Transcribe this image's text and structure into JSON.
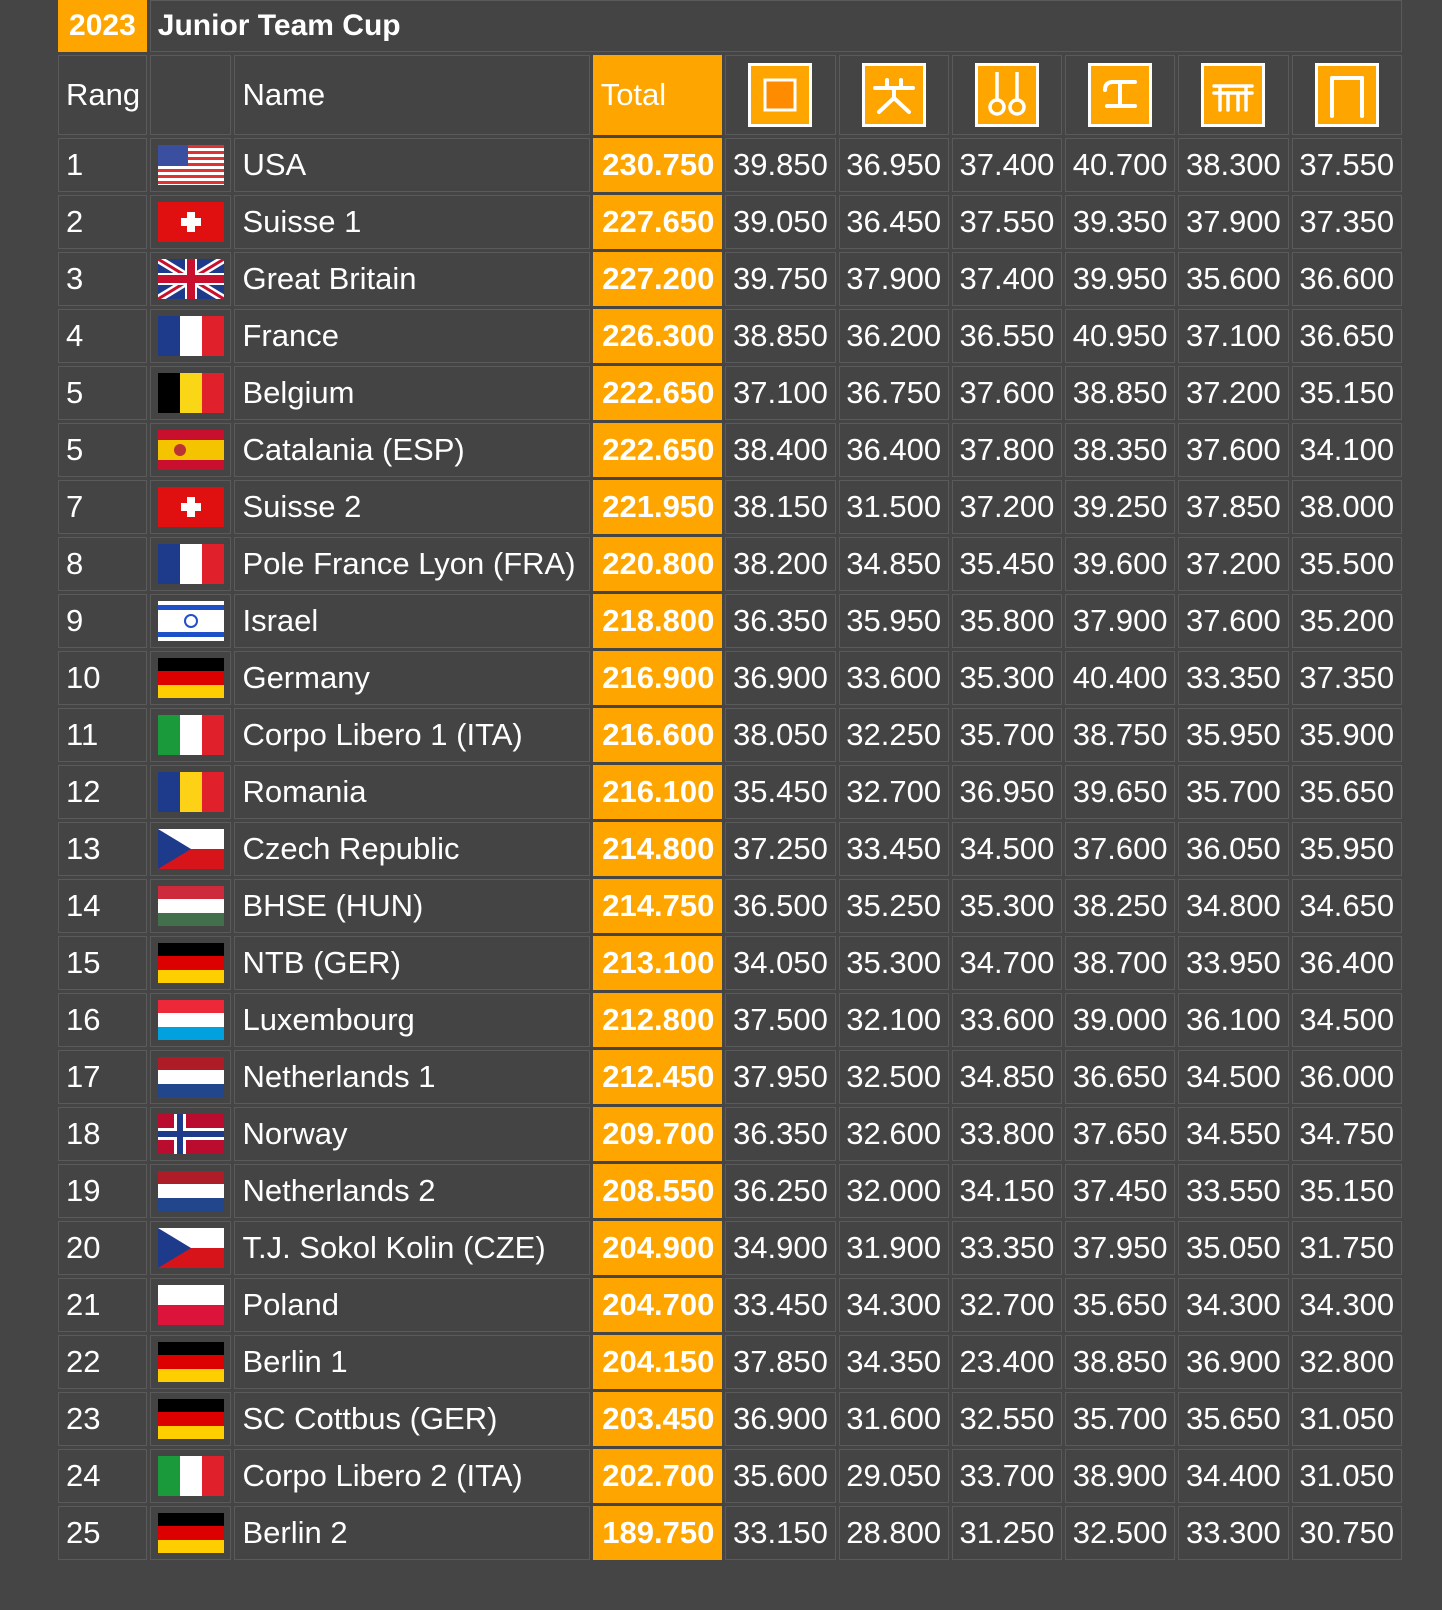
{
  "header": {
    "year": "2023",
    "title": "Junior Team Cup"
  },
  "columns": {
    "rank": "Rang",
    "flag": "",
    "name": "Name",
    "total": "Total"
  },
  "apparatus_icons": [
    "floor-icon",
    "pommel-horse-icon",
    "rings-icon",
    "vault-icon",
    "parallel-bars-icon",
    "high-bar-icon"
  ],
  "rows": [
    {
      "rank": "1",
      "flag": "usa",
      "name": "USA",
      "total": "230.750",
      "scores": [
        "39.850",
        "36.950",
        "37.400",
        "40.700",
        "38.300",
        "37.550"
      ]
    },
    {
      "rank": "2",
      "flag": "switzerland",
      "name": "Suisse 1",
      "total": "227.650",
      "scores": [
        "39.050",
        "36.450",
        "37.550",
        "39.350",
        "37.900",
        "37.350"
      ]
    },
    {
      "rank": "3",
      "flag": "great-britain",
      "name": "Great Britain",
      "total": "227.200",
      "scores": [
        "39.750",
        "37.900",
        "37.400",
        "39.950",
        "35.600",
        "36.600"
      ]
    },
    {
      "rank": "4",
      "flag": "france",
      "name": "France",
      "total": "226.300",
      "scores": [
        "38.850",
        "36.200",
        "36.550",
        "40.950",
        "37.100",
        "36.650"
      ]
    },
    {
      "rank": "5",
      "flag": "belgium",
      "name": "Belgium",
      "total": "222.650",
      "scores": [
        "37.100",
        "36.750",
        "37.600",
        "38.850",
        "37.200",
        "35.150"
      ]
    },
    {
      "rank": "5",
      "flag": "spain",
      "name": "Catalania (ESP)",
      "total": "222.650",
      "scores": [
        "38.400",
        "36.400",
        "37.800",
        "38.350",
        "37.600",
        "34.100"
      ]
    },
    {
      "rank": "7",
      "flag": "switzerland",
      "name": "Suisse 2",
      "total": "221.950",
      "scores": [
        "38.150",
        "31.500",
        "37.200",
        "39.250",
        "37.850",
        "38.000"
      ]
    },
    {
      "rank": "8",
      "flag": "france",
      "name": "Pole France Lyon (FRA)",
      "total": "220.800",
      "scores": [
        "38.200",
        "34.850",
        "35.450",
        "39.600",
        "37.200",
        "35.500"
      ]
    },
    {
      "rank": "9",
      "flag": "israel",
      "name": "Israel",
      "total": "218.800",
      "scores": [
        "36.350",
        "35.950",
        "35.800",
        "37.900",
        "37.600",
        "35.200"
      ]
    },
    {
      "rank": "10",
      "flag": "germany",
      "name": "Germany",
      "total": "216.900",
      "scores": [
        "36.900",
        "33.600",
        "35.300",
        "40.400",
        "33.350",
        "37.350"
      ]
    },
    {
      "rank": "11",
      "flag": "italy",
      "name": "Corpo Libero 1 (ITA)",
      "total": "216.600",
      "scores": [
        "38.050",
        "32.250",
        "35.700",
        "38.750",
        "35.950",
        "35.900"
      ]
    },
    {
      "rank": "12",
      "flag": "romania",
      "name": "Romania",
      "total": "216.100",
      "scores": [
        "35.450",
        "32.700",
        "36.950",
        "39.650",
        "35.700",
        "35.650"
      ]
    },
    {
      "rank": "13",
      "flag": "czech",
      "name": "Czech Republic",
      "total": "214.800",
      "scores": [
        "37.250",
        "33.450",
        "34.500",
        "37.600",
        "36.050",
        "35.950"
      ]
    },
    {
      "rank": "14",
      "flag": "hungary",
      "name": "BHSE (HUN)",
      "total": "214.750",
      "scores": [
        "36.500",
        "35.250",
        "35.300",
        "38.250",
        "34.800",
        "34.650"
      ]
    },
    {
      "rank": "15",
      "flag": "germany",
      "name": "NTB (GER)",
      "total": "213.100",
      "scores": [
        "34.050",
        "35.300",
        "34.700",
        "38.700",
        "33.950",
        "36.400"
      ]
    },
    {
      "rank": "16",
      "flag": "luxembourg",
      "name": "Luxembourg",
      "total": "212.800",
      "scores": [
        "37.500",
        "32.100",
        "33.600",
        "39.000",
        "36.100",
        "34.500"
      ]
    },
    {
      "rank": "17",
      "flag": "netherlands",
      "name": "Netherlands 1",
      "total": "212.450",
      "scores": [
        "37.950",
        "32.500",
        "34.850",
        "36.650",
        "34.500",
        "36.000"
      ]
    },
    {
      "rank": "18",
      "flag": "norway",
      "name": "Norway",
      "total": "209.700",
      "scores": [
        "36.350",
        "32.600",
        "33.800",
        "37.650",
        "34.550",
        "34.750"
      ]
    },
    {
      "rank": "19",
      "flag": "netherlands",
      "name": "Netherlands 2",
      "total": "208.550",
      "scores": [
        "36.250",
        "32.000",
        "34.150",
        "37.450",
        "33.550",
        "35.150"
      ]
    },
    {
      "rank": "20",
      "flag": "czech",
      "name": "T.J. Sokol Kolin (CZE)",
      "total": "204.900",
      "scores": [
        "34.900",
        "31.900",
        "33.350",
        "37.950",
        "35.050",
        "31.750"
      ]
    },
    {
      "rank": "21",
      "flag": "poland",
      "name": "Poland",
      "total": "204.700",
      "scores": [
        "33.450",
        "34.300",
        "32.700",
        "35.650",
        "34.300",
        "34.300"
      ]
    },
    {
      "rank": "22",
      "flag": "germany",
      "name": "Berlin 1",
      "total": "204.150",
      "scores": [
        "37.850",
        "34.350",
        "23.400",
        "38.850",
        "36.900",
        "32.800"
      ]
    },
    {
      "rank": "23",
      "flag": "germany",
      "name": "SC Cottbus (GER)",
      "total": "203.450",
      "scores": [
        "36.900",
        "31.600",
        "32.550",
        "35.700",
        "35.650",
        "31.050"
      ]
    },
    {
      "rank": "24",
      "flag": "italy",
      "name": "Corpo Libero 2 (ITA)",
      "total": "202.700",
      "scores": [
        "35.600",
        "29.050",
        "33.700",
        "38.900",
        "34.400",
        "31.050"
      ]
    },
    {
      "rank": "25",
      "flag": "germany",
      "name": "Berlin 2",
      "total": "189.750",
      "scores": [
        "33.150",
        "28.800",
        "31.250",
        "32.500",
        "33.300",
        "30.750"
      ]
    }
  ],
  "colors": {
    "accent": "#ffa500",
    "background": "#454545",
    "text": "#ffffff"
  }
}
